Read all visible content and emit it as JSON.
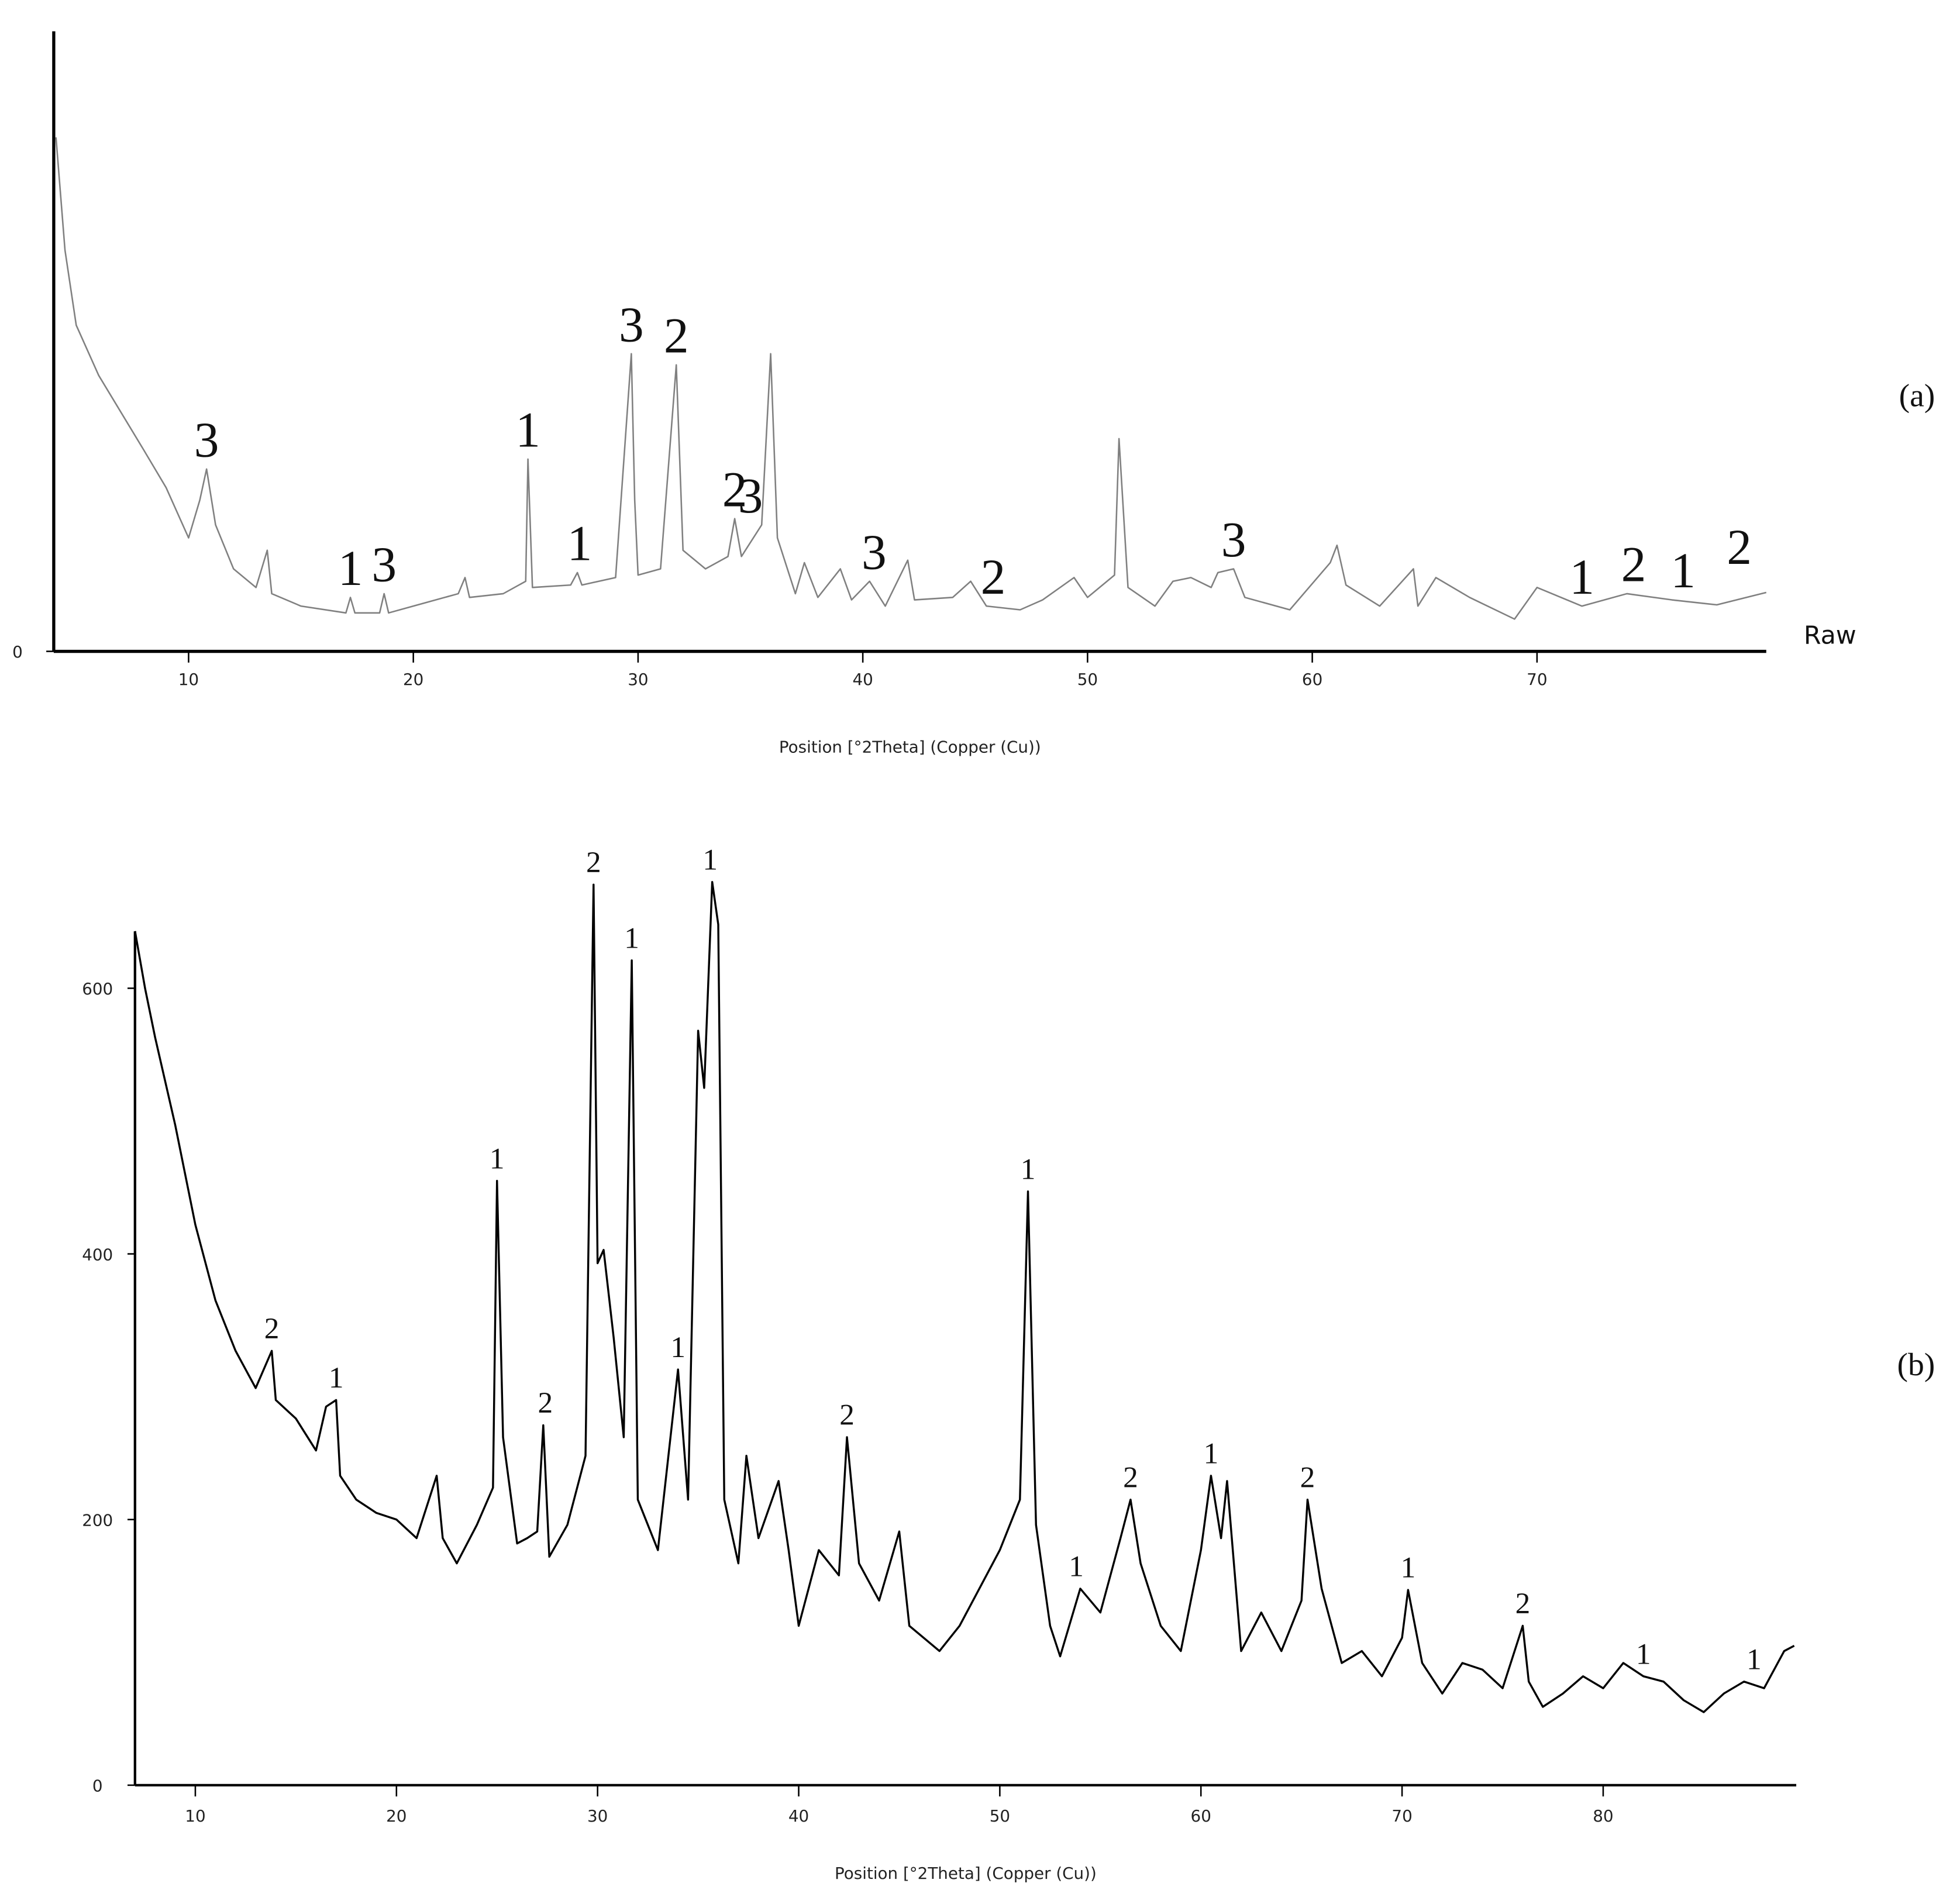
{
  "chart_data": [
    {
      "type": "line",
      "panel_label": "(a)",
      "x_label": "Position [°2Theta] (Copper (Cu))",
      "xlim": [
        4,
        80.2
      ],
      "xticks": [
        10,
        20,
        30,
        40,
        50,
        60,
        70
      ],
      "ylim": [
        0,
        1000
      ],
      "yticks": [
        0
      ],
      "x": [
        4.1,
        4.5,
        5,
        6,
        7,
        8,
        9,
        10,
        10.5,
        10.8,
        11.2,
        12,
        13,
        13.5,
        13.7,
        15,
        17,
        17.2,
        17.4,
        18.5,
        18.7,
        18.9,
        20,
        22,
        22.3,
        22.5,
        24,
        25,
        25.1,
        25.3,
        27,
        27.3,
        27.5,
        29,
        29.7,
        29.85,
        30,
        31,
        31.7,
        32,
        33,
        34,
        34.3,
        34.6,
        35.5,
        35.9,
        36.2,
        37,
        37.4,
        38,
        39,
        39.5,
        40.3,
        41,
        42,
        42.3,
        44,
        44.8,
        45.5,
        47,
        48,
        49.4,
        50,
        51.2,
        51.4,
        51.8,
        53,
        53.8,
        54.6,
        55.5,
        55.8,
        56.5,
        57,
        59,
        60.8,
        61.1,
        61.5,
        63,
        64.5,
        64.7,
        65.5,
        67,
        69,
        70,
        72,
        74,
        76,
        78,
        80.2
      ],
      "series": [
        {
          "name": "Raw",
          "color": "#808080",
          "values": [
            829,
            647,
            526,
            445,
            385,
            325,
            264,
            183,
            244,
            294,
            204,
            133,
            103,
            163,
            93,
            73,
            62,
            87,
            62,
            62,
            93,
            62,
            73,
            93,
            119,
            87,
            93,
            113,
            310,
            103,
            107,
            127,
            107,
            119,
            480,
            244,
            123,
            133,
            462,
            163,
            133,
            153,
            214,
            153,
            204,
            480,
            183,
            93,
            143,
            87,
            133,
            83,
            113,
            73,
            147,
            83,
            87,
            113,
            73,
            67,
            83,
            119,
            87,
            123,
            343,
            103,
            73,
            113,
            119,
            103,
            127,
            133,
            87,
            67,
            143,
            171,
            107,
            73,
            133,
            73,
            119,
            87,
            52,
            103,
            73,
            93,
            83,
            75,
            95
          ]
        }
      ],
      "annotations": [
        {
          "label": "3",
          "x": 10.8
        },
        {
          "label": "1",
          "x": 17.2
        },
        {
          "label": "3",
          "x": 18.7
        },
        {
          "label": "1",
          "x": 25.1
        },
        {
          "label": "1",
          "x": 27.4
        },
        {
          "label": "3",
          "x": 29.7
        },
        {
          "label": "2",
          "x": 31.7
        },
        {
          "label": "2",
          "x": 34.3
        },
        {
          "label": "3",
          "x": 35.0
        },
        {
          "label": "3",
          "x": 40.5
        },
        {
          "label": "2",
          "x": 45.8
        },
        {
          "label": "3",
          "x": 56.5
        },
        {
          "label": "1",
          "x": 72
        },
        {
          "label": "2",
          "x": 74.3
        },
        {
          "label": "1",
          "x": 76.5
        },
        {
          "label": "2",
          "x": 79
        }
      ]
    },
    {
      "type": "line",
      "panel_label": "(b)",
      "x_label": "Position [°2Theta] (Copper (Cu))",
      "xlim": [
        7,
        89.6
      ],
      "xticks": [
        10,
        20,
        30,
        40,
        50,
        60,
        70,
        80
      ],
      "ylim": [
        0,
        680
      ],
      "yticks": [
        0,
        200,
        400,
        600
      ],
      "x": [
        7,
        7.5,
        8,
        9,
        10,
        11,
        12,
        13,
        13.8,
        14,
        15,
        16,
        16.5,
        17,
        17.2,
        18,
        19,
        20,
        21,
        22,
        22.3,
        23,
        24,
        24.8,
        25,
        25.3,
        26,
        26.5,
        27,
        27.3,
        27.6,
        28.5,
        29.4,
        29.8,
        30,
        30.3,
        30.8,
        31.3,
        31.7,
        32,
        33,
        34,
        34.5,
        35,
        35.3,
        35.7,
        36,
        36.3,
        37,
        37.4,
        38,
        39,
        39.5,
        40,
        41,
        42,
        42.4,
        43,
        44,
        45,
        45.5,
        47,
        48,
        50,
        51,
        51.4,
        51.8,
        52.5,
        53,
        54,
        55,
        56,
        56.5,
        57,
        58,
        59,
        60,
        60.5,
        61,
        61.3,
        62,
        63,
        64,
        65,
        65.3,
        66,
        67,
        68,
        69,
        70,
        70.3,
        71,
        72,
        73,
        74,
        75,
        76,
        76.3,
        77,
        78,
        79,
        80,
        81,
        82,
        83,
        84,
        85,
        86,
        87,
        88,
        89,
        89.5
      ],
      "series": [
        {
          "color": "#000000",
          "values": [
            643,
            600,
            563,
            497,
            422,
            365,
            327,
            299,
            327,
            290,
            276,
            252,
            285,
            290,
            233,
            215,
            205,
            200,
            186,
            233,
            186,
            167,
            196,
            224,
            455,
            262,
            182,
            186,
            191,
            271,
            172,
            196,
            248,
            678,
            393,
            403,
            337,
            262,
            621,
            215,
            177,
            313,
            215,
            568,
            525,
            680,
            648,
            215,
            167,
            248,
            186,
            229,
            177,
            120,
            177,
            158,
            262,
            167,
            139,
            191,
            120,
            101,
            120,
            177,
            215,
            447,
            196,
            120,
            97,
            148,
            130,
            186,
            215,
            167,
            120,
            101,
            177,
            233,
            186,
            229,
            101,
            130,
            101,
            139,
            215,
            148,
            92,
            101,
            82,
            111,
            147,
            92,
            69,
            92,
            87,
            73,
            120,
            78,
            59,
            69,
            82,
            73,
            92,
            82,
            78,
            64,
            55,
            69,
            78,
            73,
            101,
            105
          ]
        }
      ],
      "annotations": [
        {
          "label": "2",
          "x": 13.8
        },
        {
          "label": "1",
          "x": 17
        },
        {
          "label": "1",
          "x": 25
        },
        {
          "label": "2",
          "x": 27.4
        },
        {
          "label": "2",
          "x": 29.8
        },
        {
          "label": "1",
          "x": 31.7
        },
        {
          "label": "1",
          "x": 34
        },
        {
          "label": "1",
          "x": 35.6
        },
        {
          "label": "2",
          "x": 42.4
        },
        {
          "label": "1",
          "x": 51.4
        },
        {
          "label": "1",
          "x": 53.8
        },
        {
          "label": "2",
          "x": 56.5
        },
        {
          "label": "1",
          "x": 60.5
        },
        {
          "label": "2",
          "x": 65.3
        },
        {
          "label": "1",
          "x": 70.3
        },
        {
          "label": "2",
          "x": 76
        },
        {
          "label": "1",
          "x": 82
        },
        {
          "label": "1",
          "x": 87.5
        }
      ]
    }
  ]
}
